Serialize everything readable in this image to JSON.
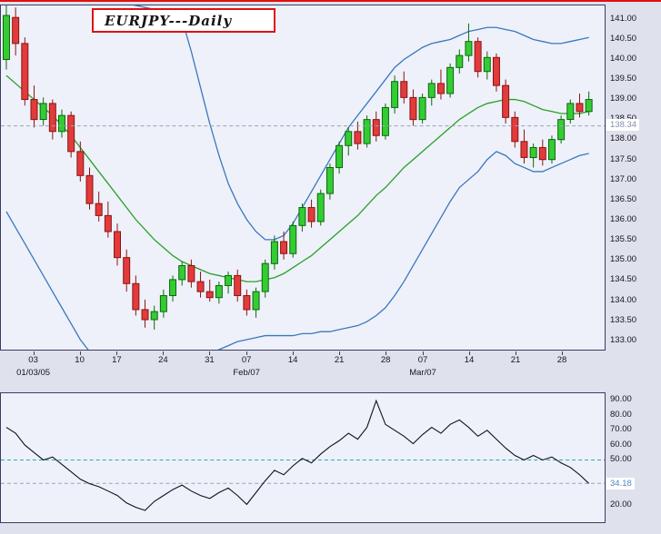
{
  "title": "EURJPY---Daily",
  "colors": {
    "background": "#dfe1ec",
    "plot_bg": "#eef1f9",
    "panel_border": "#3c3c64",
    "accent_red": "#e01010",
    "candle_up": "#33cd33",
    "candle_up_border": "#0c660c",
    "candle_down": "#e23b3b",
    "candle_down_border": "#8b1212",
    "band_outer": "#3977c0",
    "band_middle": "#28a028",
    "price_line": "#9aa2b8",
    "osc_line": "#101018",
    "osc_mid_line": "#2aacac",
    "price_marker_text": "#8090ac",
    "osc_marker_text": "#4f86c6",
    "axis_text": "#15151d"
  },
  "chart_data": [
    {
      "type": "candlestick",
      "name": "EURJPY-daily-price",
      "title": "EURJPY---Daily",
      "ylim": [
        132.75,
        141.35
      ],
      "y_tick_labels": [
        "141.00",
        "140.50",
        "140.00",
        "139.50",
        "139.00",
        "138.50",
        "138.00",
        "137.50",
        "137.00",
        "136.50",
        "136.00",
        "135.50",
        "135.00",
        "134.50",
        "134.00",
        "133.50",
        "133.00"
      ],
      "price_line": 138.34,
      "x_ticks": [
        {
          "label": "03",
          "i": 3
        },
        {
          "label": "10",
          "i": 8
        },
        {
          "label": "17",
          "i": 12
        },
        {
          "label": "24",
          "i": 17
        },
        {
          "label": "31",
          "i": 22
        },
        {
          "label": "07",
          "i": 26
        },
        {
          "label": "14",
          "i": 31
        },
        {
          "label": "21",
          "i": 36
        },
        {
          "label": "28",
          "i": 41
        },
        {
          "label": "07",
          "i": 45
        },
        {
          "label": "14",
          "i": 50
        },
        {
          "label": "21",
          "i": 55
        },
        {
          "label": "28",
          "i": 60
        }
      ],
      "x_period_labels": [
        {
          "label": "01/03/05",
          "i": 3
        },
        {
          "label": "Feb/07",
          "i": 26
        },
        {
          "label": "Mar/07",
          "i": 45
        }
      ],
      "ohlc": [
        [
          140.0,
          141.35,
          139.75,
          141.1
        ],
        [
          141.05,
          141.3,
          140.1,
          140.4
        ],
        [
          140.4,
          140.55,
          138.85,
          139.0
        ],
        [
          139.0,
          139.35,
          138.3,
          138.5
        ],
        [
          138.5,
          139.05,
          138.35,
          138.9
        ],
        [
          138.9,
          139.0,
          138.0,
          138.2
        ],
        [
          138.2,
          138.75,
          138.05,
          138.6
        ],
        [
          138.6,
          138.7,
          137.55,
          137.7
        ],
        [
          137.7,
          137.95,
          136.95,
          137.1
        ],
        [
          137.1,
          137.3,
          136.25,
          136.4
        ],
        [
          136.4,
          136.7,
          135.95,
          136.1
        ],
        [
          136.1,
          136.45,
          135.55,
          135.7
        ],
        [
          135.7,
          135.9,
          134.85,
          135.05
        ],
        [
          135.05,
          135.25,
          134.2,
          134.4
        ],
        [
          134.4,
          134.6,
          133.6,
          133.75
        ],
        [
          133.75,
          134.0,
          133.3,
          133.5
        ],
        [
          133.5,
          133.85,
          133.25,
          133.7
        ],
        [
          133.7,
          134.25,
          133.55,
          134.1
        ],
        [
          134.1,
          134.6,
          133.95,
          134.5
        ],
        [
          134.5,
          134.95,
          134.35,
          134.85
        ],
        [
          134.85,
          135.0,
          134.3,
          134.45
        ],
        [
          134.45,
          134.7,
          134.05,
          134.2
        ],
        [
          134.2,
          134.5,
          133.95,
          134.05
        ],
        [
          134.05,
          134.45,
          133.9,
          134.35
        ],
        [
          134.35,
          134.7,
          134.15,
          134.6
        ],
        [
          134.6,
          134.75,
          133.95,
          134.1
        ],
        [
          134.1,
          134.25,
          133.6,
          133.75
        ],
        [
          133.75,
          134.3,
          133.55,
          134.2
        ],
        [
          134.2,
          135.0,
          134.05,
          134.9
        ],
        [
          134.9,
          135.6,
          134.75,
          135.45
        ],
        [
          135.45,
          135.7,
          135.0,
          135.15
        ],
        [
          135.15,
          135.95,
          135.05,
          135.85
        ],
        [
          135.85,
          136.4,
          135.7,
          136.3
        ],
        [
          136.3,
          136.5,
          135.8,
          135.95
        ],
        [
          135.95,
          136.75,
          135.85,
          136.65
        ],
        [
          136.65,
          137.4,
          136.5,
          137.3
        ],
        [
          137.3,
          137.95,
          137.15,
          137.85
        ],
        [
          137.85,
          138.3,
          137.6,
          138.2
        ],
        [
          138.2,
          138.45,
          137.75,
          137.9
        ],
        [
          137.9,
          138.6,
          137.8,
          138.5
        ],
        [
          138.5,
          138.7,
          137.95,
          138.1
        ],
        [
          138.1,
          138.9,
          138.0,
          138.8
        ],
        [
          138.8,
          139.6,
          138.65,
          139.45
        ],
        [
          139.45,
          139.7,
          138.9,
          139.05
        ],
        [
          139.05,
          139.25,
          138.35,
          138.5
        ],
        [
          138.5,
          139.15,
          138.4,
          139.05
        ],
        [
          139.05,
          139.5,
          138.85,
          139.4
        ],
        [
          139.4,
          139.75,
          139.0,
          139.15
        ],
        [
          139.15,
          139.9,
          139.05,
          139.8
        ],
        [
          139.8,
          140.25,
          139.65,
          140.1
        ],
        [
          140.1,
          140.9,
          139.95,
          140.45
        ],
        [
          140.45,
          140.55,
          139.55,
          139.7
        ],
        [
          139.7,
          140.2,
          139.5,
          140.05
        ],
        [
          140.05,
          140.15,
          139.2,
          139.35
        ],
        [
          139.35,
          139.5,
          138.4,
          138.55
        ],
        [
          138.55,
          138.7,
          137.8,
          137.95
        ],
        [
          137.95,
          138.25,
          137.4,
          137.55
        ],
        [
          137.55,
          137.9,
          137.3,
          137.8
        ],
        [
          137.8,
          138.0,
          137.35,
          137.5
        ],
        [
          137.5,
          138.1,
          137.4,
          138.0
        ],
        [
          138.0,
          138.6,
          137.9,
          138.5
        ],
        [
          138.5,
          139.0,
          138.4,
          138.9
        ],
        [
          138.9,
          139.15,
          138.55,
          138.7
        ],
        [
          138.7,
          139.2,
          138.6,
          139.0
        ]
      ],
      "overlays": [
        {
          "name": "bollinger-upper",
          "values": [
            143.0,
            142.9,
            142.8,
            142.6,
            142.4,
            142.2,
            142.0,
            141.9,
            141.8,
            141.7,
            141.6,
            141.5,
            141.45,
            141.4,
            141.35,
            141.3,
            141.25,
            141.2,
            141.1,
            141.0,
            140.2,
            139.3,
            138.4,
            137.6,
            136.9,
            136.4,
            136.0,
            135.7,
            135.5,
            135.5,
            135.6,
            135.9,
            136.3,
            136.7,
            137.1,
            137.5,
            137.9,
            138.3,
            138.6,
            138.9,
            139.2,
            139.5,
            139.8,
            140.0,
            140.15,
            140.3,
            140.4,
            140.45,
            140.5,
            140.6,
            140.7,
            140.75,
            140.8,
            140.8,
            140.75,
            140.7,
            140.6,
            140.5,
            140.45,
            140.4,
            140.4,
            140.45,
            140.5,
            140.55
          ]
        },
        {
          "name": "bollinger-middle",
          "values": [
            139.6,
            139.4,
            139.2,
            139.0,
            138.8,
            138.6,
            138.35,
            138.1,
            137.8,
            137.5,
            137.2,
            136.9,
            136.6,
            136.3,
            136.0,
            135.75,
            135.5,
            135.3,
            135.1,
            134.95,
            134.85,
            134.75,
            134.65,
            134.6,
            134.55,
            134.5,
            134.45,
            134.45,
            134.5,
            134.55,
            134.65,
            134.8,
            134.95,
            135.1,
            135.3,
            135.5,
            135.7,
            135.9,
            136.1,
            136.35,
            136.6,
            136.8,
            137.05,
            137.3,
            137.5,
            137.7,
            137.9,
            138.1,
            138.3,
            138.5,
            138.65,
            138.8,
            138.9,
            138.95,
            139.0,
            139.0,
            138.95,
            138.85,
            138.75,
            138.7,
            138.65,
            138.65,
            138.65,
            138.7
          ]
        },
        {
          "name": "bollinger-lower",
          "values": [
            136.2,
            135.8,
            135.4,
            135.0,
            134.6,
            134.2,
            133.8,
            133.4,
            133.0,
            132.7,
            132.5,
            132.3,
            132.2,
            132.1,
            132.0,
            132.0,
            132.0,
            132.1,
            132.2,
            132.3,
            132.45,
            132.55,
            132.65,
            132.75,
            132.85,
            132.95,
            133.0,
            133.05,
            133.1,
            133.1,
            133.1,
            133.1,
            133.15,
            133.15,
            133.2,
            133.2,
            133.25,
            133.3,
            133.35,
            133.45,
            133.6,
            133.8,
            134.1,
            134.45,
            134.85,
            135.25,
            135.65,
            136.05,
            136.45,
            136.8,
            137.0,
            137.2,
            137.5,
            137.7,
            137.6,
            137.4,
            137.3,
            137.2,
            137.2,
            137.3,
            137.4,
            137.5,
            137.6,
            137.65
          ]
        }
      ]
    },
    {
      "type": "line",
      "name": "oscillator",
      "ylim": [
        8,
        95
      ],
      "y_tick_labels": [
        "90.00",
        "80.00",
        "70.00",
        "60.00",
        "50.00",
        "20.00"
      ],
      "levels": [
        {
          "value": 50,
          "color_key": "osc_mid_line"
        },
        {
          "value": 34.18,
          "color_key": "price_line"
        }
      ],
      "last_value": 34.18,
      "values": [
        72,
        68,
        60,
        55,
        50,
        52,
        47,
        42,
        37,
        34,
        32,
        29,
        26,
        21,
        18,
        16,
        22,
        26,
        30,
        33,
        29,
        26,
        24,
        28,
        31,
        26,
        20,
        28,
        36,
        43,
        40,
        46,
        51,
        48,
        54,
        59,
        63,
        68,
        64,
        72,
        90,
        74,
        70,
        66,
        61,
        67,
        72,
        68,
        74,
        77,
        72,
        66,
        70,
        64,
        58,
        53,
        50,
        53,
        50,
        52,
        48,
        45,
        40,
        34.18
      ]
    }
  ]
}
